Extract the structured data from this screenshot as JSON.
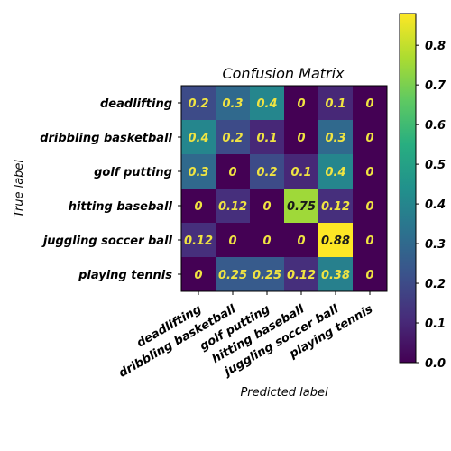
{
  "chart_data": {
    "type": "heatmap",
    "title": "Confusion Matrix",
    "xlabel": "Predicted label",
    "ylabel": "True label",
    "labels": [
      "deadlifting",
      "dribbling basketball",
      "golf putting",
      "hitting baseball",
      "juggling soccer ball",
      "playing tennis"
    ],
    "matrix": [
      [
        0.2,
        0.3,
        0.4,
        0,
        0.1,
        0
      ],
      [
        0.4,
        0.2,
        0.1,
        0,
        0.3,
        0
      ],
      [
        0.3,
        0,
        0.2,
        0.1,
        0.4,
        0
      ],
      [
        0,
        0.12,
        0,
        0.75,
        0.12,
        0
      ],
      [
        0.12,
        0,
        0,
        0,
        0.88,
        0
      ],
      [
        0,
        0.25,
        0.25,
        0.12,
        0.38,
        0
      ]
    ],
    "cell_text": [
      [
        "0.2",
        "0.3",
        "0.4",
        "0",
        "0.1",
        "0"
      ],
      [
        "0.4",
        "0.2",
        "0.1",
        "0",
        "0.3",
        "0"
      ],
      [
        "0.3",
        "0",
        "0.2",
        "0.1",
        "0.4",
        "0"
      ],
      [
        "0",
        "0.12",
        "0",
        "0.75",
        "0.12",
        "0"
      ],
      [
        "0.12",
        "0",
        "0",
        "0",
        "0.88",
        "0"
      ],
      [
        "0",
        "0.25",
        "0.25",
        "0.12",
        "0.38",
        "0"
      ]
    ],
    "colormap": "viridis",
    "vmin": 0,
    "vmax": 0.88,
    "colorbar_ticks": [
      "0.0",
      "0.1",
      "0.2",
      "0.3",
      "0.4",
      "0.5",
      "0.6",
      "0.7",
      "0.8"
    ],
    "colorbar_tick_values": [
      0,
      0.1,
      0.2,
      0.3,
      0.4,
      0.5,
      0.6,
      0.7,
      0.8
    ],
    "text_color_light": "#f0e442",
    "text_color_dark": "#1a1a1a"
  }
}
